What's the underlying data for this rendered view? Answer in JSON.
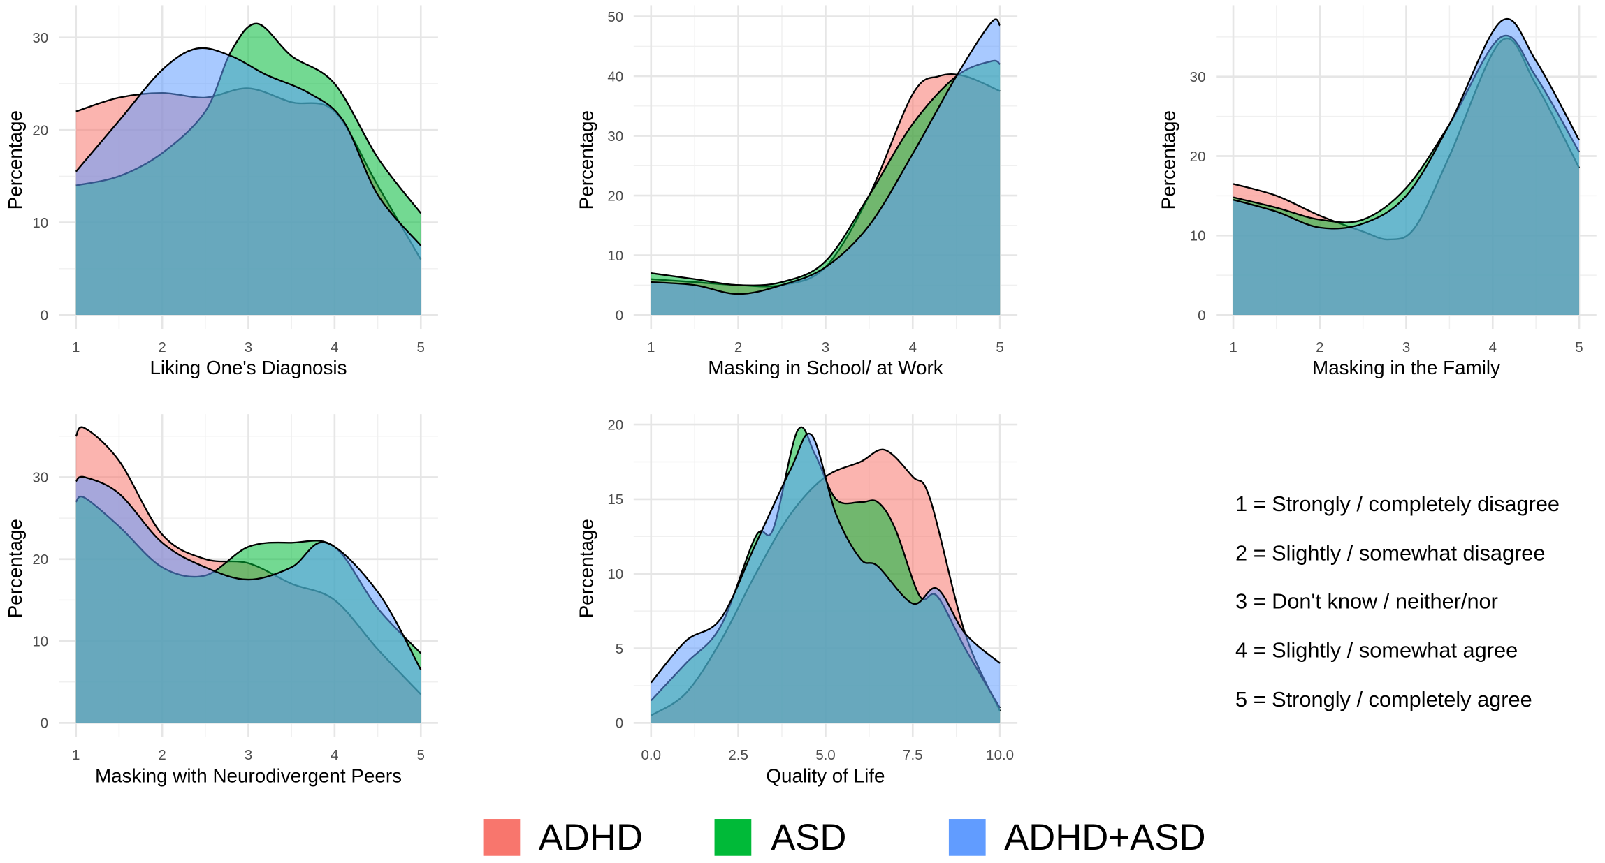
{
  "colors": {
    "ADHD": "#F8766D",
    "ASD": "#00BA38",
    "ADHD+ASD": "#619CFF"
  },
  "legend": [
    "ADHD",
    "ASD",
    "ADHD+ASD"
  ],
  "scale_notes": [
    "1 = Strongly / completely disagree",
    "2 = Slightly / somewhat disagree",
    "3 = Don't know / neither/nor",
    "4 = Slightly / somewhat agree",
    "5 = Strongly / completely agree"
  ],
  "chart_data": [
    {
      "type": "area",
      "title": "",
      "xlabel": "Liking One's Diagnosis",
      "ylabel": "Percentage",
      "xlim": [
        1,
        5
      ],
      "ylim": [
        0,
        33.5
      ],
      "grid": true,
      "xticks": [
        1,
        2,
        3,
        4,
        5
      ],
      "xtick_labels": [
        "1",
        "2",
        "3",
        "4",
        "5"
      ],
      "yticks": [
        0,
        10,
        20,
        30
      ],
      "ytick_labels": [
        "0",
        "10",
        "20",
        "30"
      ],
      "series": [
        {
          "name": "ADHD",
          "x": [
            1,
            1.5,
            2,
            2.5,
            3,
            3.5,
            4,
            4.5,
            5
          ],
          "y": [
            22,
            23.5,
            24,
            23.5,
            24.5,
            23,
            22,
            14,
            6
          ]
        },
        {
          "name": "ASD",
          "x": [
            1,
            1.5,
            2,
            2.5,
            2.8,
            3.1,
            3.5,
            4,
            4.5,
            5
          ],
          "y": [
            14,
            15,
            17.5,
            22,
            28.5,
            31.5,
            28,
            25,
            17,
            11
          ]
        },
        {
          "name": "ADHD+ASD",
          "x": [
            1,
            1.5,
            2,
            2.4,
            2.8,
            3.2,
            3.7,
            4.1,
            4.5,
            5
          ],
          "y": [
            15.5,
            21,
            26.5,
            28.8,
            28,
            26,
            24,
            21,
            13,
            7.5
          ]
        }
      ]
    },
    {
      "type": "area",
      "title": "",
      "xlabel": "Masking in School/ at Work",
      "ylabel": "Percentage",
      "xlim": [
        1,
        5
      ],
      "ylim": [
        0,
        51.9
      ],
      "grid": true,
      "xticks": [
        1,
        2,
        3,
        4,
        5
      ],
      "xtick_labels": [
        "1",
        "2",
        "3",
        "4",
        "5"
      ],
      "yticks": [
        0,
        10,
        20,
        30,
        40,
        50
      ],
      "ytick_labels": [
        "0",
        "10",
        "20",
        "30",
        "40",
        "50"
      ],
      "series": [
        {
          "name": "ADHD",
          "x": [
            1,
            1.5,
            2,
            2.5,
            3,
            3.5,
            4,
            4.3,
            4.6,
            5
          ],
          "y": [
            6,
            5.5,
            5,
            5,
            8,
            20,
            37,
            40,
            40,
            37.5
          ]
        },
        {
          "name": "ASD",
          "x": [
            1,
            1.5,
            2,
            2.5,
            3,
            3.5,
            4,
            4.5,
            4.9,
            5
          ],
          "y": [
            7,
            6,
            5,
            5.5,
            9,
            20,
            32,
            40,
            42.5,
            42
          ]
        },
        {
          "name": "ADHD+ASD",
          "x": [
            1,
            1.5,
            2,
            2.5,
            3,
            3.5,
            4,
            4.5,
            4.9,
            5
          ],
          "y": [
            5.5,
            5,
            3.5,
            5,
            8,
            15,
            27,
            40,
            49,
            48.5
          ]
        }
      ]
    },
    {
      "type": "area",
      "title": "",
      "xlabel": "Masking in the Family",
      "ylabel": "Percentage",
      "xlim": [
        1,
        5
      ],
      "ylim": [
        0,
        39
      ],
      "grid": true,
      "xticks": [
        1,
        2,
        3,
        4,
        5
      ],
      "xtick_labels": [
        "1",
        "2",
        "3",
        "4",
        "5"
      ],
      "yticks": [
        0,
        10,
        20,
        30
      ],
      "ytick_labels": [
        "0",
        "10",
        "20",
        "30"
      ],
      "series": [
        {
          "name": "ADHD",
          "x": [
            1,
            1.5,
            2,
            2.5,
            2.8,
            3.1,
            3.5,
            4.1,
            4.5,
            5
          ],
          "y": [
            16.5,
            15,
            12.5,
            10.5,
            9.5,
            11,
            20,
            34.5,
            29,
            18.5
          ]
        },
        {
          "name": "ASD",
          "x": [
            1,
            1.5,
            2,
            2.5,
            3,
            3.5,
            4.1,
            4.5,
            5
          ],
          "y": [
            14.8,
            13.5,
            12,
            12,
            16,
            24,
            35,
            30,
            20.5
          ]
        },
        {
          "name": "ADHD+ASD",
          "x": [
            1,
            1.5,
            2,
            2.5,
            3,
            3.5,
            4.1,
            4.5,
            5
          ],
          "y": [
            14.5,
            13,
            11,
            11.5,
            15,
            24,
            37,
            32,
            22
          ]
        }
      ]
    },
    {
      "type": "area",
      "title": "",
      "xlabel": "Masking with Neurodivergent Peers",
      "ylabel": "Percentage",
      "xlim": [
        1,
        5
      ],
      "ylim": [
        0,
        37.7
      ],
      "grid": true,
      "xticks": [
        1,
        2,
        3,
        4,
        5
      ],
      "xtick_labels": [
        "1",
        "2",
        "3",
        "4",
        "5"
      ],
      "yticks": [
        0,
        10,
        20,
        30
      ],
      "ytick_labels": [
        "0",
        "10",
        "20",
        "30"
      ],
      "series": [
        {
          "name": "ADHD",
          "x": [
            1,
            1.1,
            1.5,
            2,
            2.5,
            3,
            3.5,
            4,
            4.5,
            5
          ],
          "y": [
            35,
            36,
            32,
            23,
            20,
            19.5,
            17,
            15,
            9,
            3.5
          ]
        },
        {
          "name": "ASD",
          "x": [
            1,
            1.1,
            1.5,
            2,
            2.5,
            3,
            3.5,
            4,
            4.5,
            5
          ],
          "y": [
            27,
            27.5,
            24,
            19,
            18,
            21.5,
            22,
            21.5,
            14,
            8.5
          ]
        },
        {
          "name": "ADHD+ASD",
          "x": [
            1,
            1.1,
            1.5,
            2,
            2.5,
            3,
            3.5,
            3.9,
            4.5,
            5
          ],
          "y": [
            29.5,
            30,
            28,
            22,
            19,
            17.5,
            19,
            22,
            16,
            6.5
          ]
        }
      ]
    },
    {
      "type": "area",
      "title": "",
      "xlabel": "Quality of Life",
      "ylabel": "Percentage",
      "xlim": [
        0,
        10
      ],
      "ylim": [
        0,
        20.7
      ],
      "grid": true,
      "xticks": [
        0,
        2.5,
        5,
        7.5,
        10
      ],
      "xtick_labels": [
        "0.0",
        "2.5",
        "5.0",
        "7.5",
        "10.0"
      ],
      "yticks": [
        0,
        5,
        10,
        15,
        20
      ],
      "ytick_labels": [
        "0",
        "5",
        "10",
        "15",
        "20"
      ],
      "series": [
        {
          "name": "ADHD",
          "x": [
            0,
            1,
            2,
            3,
            4,
            5,
            6,
            6.7,
            7.5,
            8,
            9,
            10
          ],
          "y": [
            0.5,
            2,
            5.5,
            10,
            14,
            16.5,
            17.5,
            18.3,
            16.5,
            15,
            6,
            0.8
          ]
        },
        {
          "name": "ASD",
          "x": [
            0,
            1,
            2,
            3,
            3.5,
            4.2,
            4.7,
            5.3,
            6,
            6.5,
            7,
            7.7,
            8.2,
            9,
            10
          ],
          "y": [
            1.5,
            4,
            6.5,
            12.5,
            13,
            19.6,
            18,
            15,
            14.8,
            14.8,
            13,
            8.5,
            8.5,
            5,
            1
          ]
        },
        {
          "name": "ADHD+ASD",
          "x": [
            0,
            1,
            2,
            3,
            4,
            4.6,
            5.3,
            6,
            6.5,
            7.5,
            8.2,
            9,
            10
          ],
          "y": [
            2.7,
            5.5,
            7,
            12,
            17,
            19.3,
            14,
            11,
            10.5,
            8,
            9,
            6,
            4
          ]
        }
      ]
    }
  ]
}
